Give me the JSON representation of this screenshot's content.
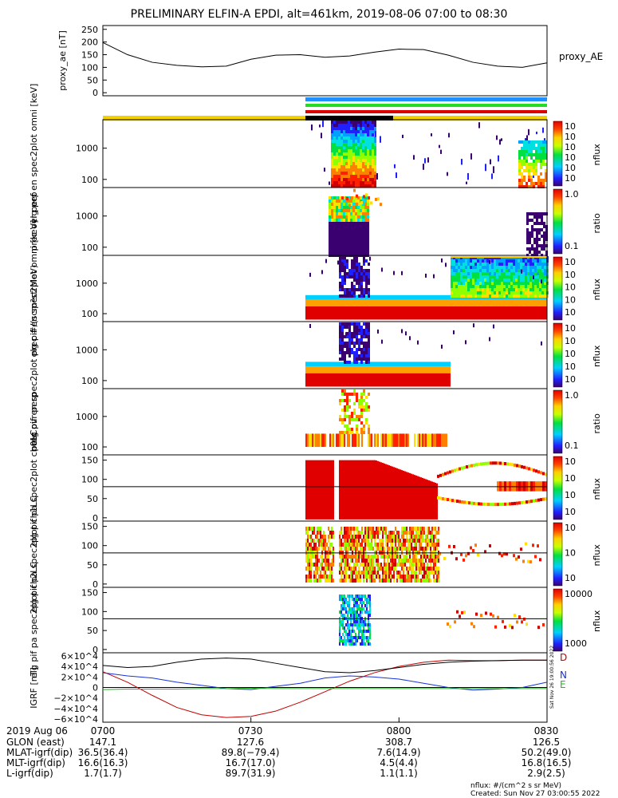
{
  "title": "PRELIMINARY ELFIN-A EPDI, alt=461km, 2019-08-06 07:00 to 08:30",
  "colors": {
    "trace": "#000000",
    "D": "#c00000",
    "N": "#1a33d6",
    "E": "#22b422",
    "bar_blue": "#1e90ff",
    "bar_green": "#22dd22",
    "bar_red": "#dd0000",
    "bar_yellow": "#f5d000",
    "bar_black": "#000000"
  },
  "chart_data": [
    {
      "type": "line",
      "panel": "proxy_ae",
      "ylabel": "proxy_ae [nT]",
      "legend": "proxy_AE",
      "ylim": [
        -12,
        265
      ],
      "yticks": [
        0,
        50,
        100,
        150,
        200,
        250
      ],
      "x_minutes": [
        0,
        5,
        10,
        15,
        20,
        25,
        30,
        35,
        40,
        45,
        50,
        55,
        60,
        65,
        70,
        75,
        80,
        85,
        90
      ],
      "values": [
        198,
        150,
        120,
        108,
        102,
        105,
        132,
        148,
        150,
        140,
        145,
        160,
        172,
        170,
        148,
        120,
        105,
        100,
        118
      ]
    },
    {
      "type": "heatmap",
      "panel": "elf-pef-en-spec2plot-omni",
      "ylabel": "elg pef en spec2plot omni [keV]",
      "yticks": [
        "1000",
        "100"
      ],
      "colorbar": {
        "label": "nflux",
        "ticks": [
          "10^7",
          "10^6",
          "10^5",
          "10^4",
          "10^3",
          "10^2"
        ]
      }
    },
    {
      "type": "heatmap",
      "panel": "prec-ovr-perp-e",
      "ylabel": "prec ovr perp",
      "yticks": [
        "1000",
        "100"
      ],
      "colorbar": {
        "label": "ratio",
        "ticks": [
          "1.0",
          "0.1"
        ]
      }
    },
    {
      "type": "heatmap",
      "panel": "elf-pif-en-spec2plot-omni",
      "ylabel": "elg pif en spec2plot omni [keV]",
      "yticks": [
        "1000",
        "100"
      ],
      "colorbar": {
        "label": "nflux",
        "ticks": [
          "10^6",
          "10^5",
          "10^4",
          "10^3",
          "10^2"
        ]
      }
    },
    {
      "type": "heatmap",
      "panel": "elf-pif-en-spec2plot-prec",
      "ylabel": "elg pif en spec2plot prec #/(scm²strMeV)",
      "yticks": [
        "1000",
        "100"
      ],
      "colorbar": {
        "label": "nflux",
        "ticks": [
          "10^6",
          "10^5",
          "10^4",
          "10^3",
          "10^2"
        ]
      }
    },
    {
      "type": "heatmap",
      "panel": "prec-ovr-perp-i",
      "ylabel": "prec ovr perp",
      "yticks": [
        "1000",
        "100"
      ],
      "colorbar": {
        "label": "ratio",
        "ticks": [
          "1.0",
          "0.1"
        ]
      }
    },
    {
      "type": "heatmap",
      "panel": "pa-ch0LC",
      "ylabel": "elg pif pa spec2plot ch0LC",
      "yticks": [
        "150",
        "100",
        "50",
        "0"
      ],
      "colorbar": {
        "label": "nflux",
        "ticks": [
          "10^5",
          "10^5",
          "10^4",
          "10^3"
        ]
      }
    },
    {
      "type": "heatmap",
      "panel": "pa-ch1LC",
      "ylabel": "elg pif pa spec2plot ch1LC",
      "yticks": [
        "150",
        "100",
        "50",
        "0"
      ],
      "colorbar": {
        "label": "nflux",
        "ticks": [
          "10^5",
          "10^4",
          "10^3"
        ]
      }
    },
    {
      "type": "heatmap",
      "panel": "pa-ch2LC",
      "ylabel": "elg pif pa spec2plot ch2LC",
      "yticks": [
        "150",
        "100",
        "50",
        "0"
      ],
      "colorbar": {
        "label": "nflux",
        "ticks": [
          "10000",
          "1000"
        ]
      }
    },
    {
      "type": "line",
      "panel": "igrf",
      "ylabel": "IGRF [nT]",
      "ylim": [
        -66000,
        66000
      ],
      "yticks": [
        "6×10^4",
        "4×10^4",
        "2×10^4",
        "0",
        "−2×10^4",
        "−4×10^4",
        "−6×10^4"
      ],
      "x_minutes": [
        0,
        5,
        10,
        15,
        20,
        25,
        30,
        35,
        40,
        45,
        50,
        55,
        60,
        65,
        70,
        75,
        80,
        85,
        90
      ],
      "series": [
        {
          "name": "D",
          "values": [
            30000,
            10000,
            -15000,
            -38000,
            -52000,
            -57000,
            -55000,
            -45000,
            -28000,
            -8000,
            12000,
            28000,
            40000,
            48000,
            52000,
            51000,
            51000,
            52000,
            52000
          ]
        },
        {
          "name": "N",
          "values": [
            28000,
            22000,
            18000,
            10000,
            4000,
            -2000,
            -4000,
            2000,
            8000,
            18000,
            22000,
            20000,
            16000,
            8000,
            0,
            -5000,
            -3000,
            0,
            10000
          ]
        },
        {
          "name": "E",
          "values": [
            -4000,
            -3000,
            -3000,
            -3000,
            -2000,
            -2000,
            -1500,
            -2000,
            -2000,
            -2000,
            -2000,
            -2000,
            -2000,
            -2000,
            -2000,
            -2000,
            -2000,
            -2000,
            -2000
          ]
        },
        {
          "name": "total",
          "values": [
            42000,
            38000,
            40000,
            48000,
            54000,
            56000,
            54000,
            46000,
            38000,
            30000,
            28000,
            32000,
            38000,
            44000,
            48000,
            50000,
            51000,
            52000,
            52000
          ]
        }
      ]
    }
  ],
  "xaxis": {
    "rows": [
      {
        "label": "2019 Aug 06",
        "values": [
          "0700",
          "0730",
          "0800",
          "0830"
        ]
      },
      {
        "label": "GLON (east)",
        "values": [
          "147.1",
          "127.6",
          "308.7",
          "126.5"
        ]
      },
      {
        "label": "MLAT-igrf(dip)",
        "values": [
          "36.5(36.4)",
          "89.8(−79.4)",
          "7.6(14.9)",
          "50.2(49.0)"
        ]
      },
      {
        "label": "MLT-igrf(dip)",
        "values": [
          "16.6(16.3)",
          "16.7(17.0)",
          "4.5(4.4)",
          "16.8(16.5)"
        ]
      },
      {
        "label": "L-igrf(dip)",
        "values": [
          "1.7(1.7)",
          "89.7(31.9)",
          "1.1(1.1)",
          "2.9(2.5)"
        ]
      }
    ]
  },
  "footer": {
    "units": "nflux: #/(cm^2 s sr MeV)",
    "created": "Created: Sun Nov 27 03:00:55 2022",
    "side_stamp": "Sat Nov 26 19:00:56 2022"
  }
}
